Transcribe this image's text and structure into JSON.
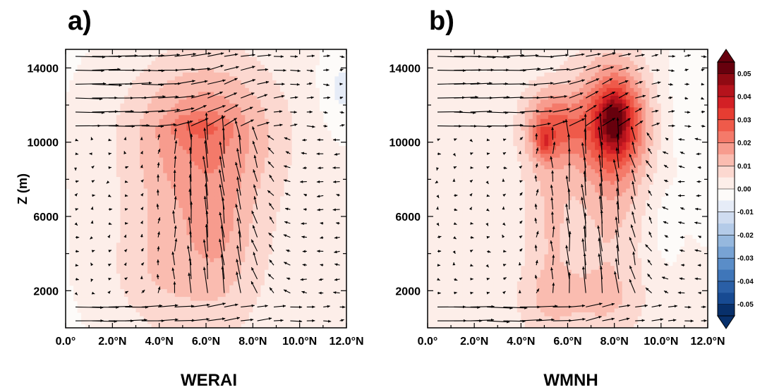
{
  "chart_data": [
    {
      "type": "heatmap",
      "panel_label": "a)",
      "title": "WERAI",
      "xlabel": "",
      "ylabel": "Z (m)",
      "xlim": [
        0,
        12
      ],
      "ylim": [
        0,
        15000
      ],
      "x_ticks": [
        0,
        2,
        4,
        6,
        8,
        10,
        12
      ],
      "x_tick_labels": [
        "0.0°",
        "2.0°N",
        "4.0°N",
        "6.0°N",
        "8.0°N",
        "10.0°N",
        "12.0°N"
      ],
      "y_ticks": [
        2000,
        6000,
        10000,
        14000
      ],
      "y_tick_labels": [
        "2000",
        "6000",
        "10000",
        "14000"
      ],
      "contour_field": [
        {
          "x": 4.3,
          "y": 6500,
          "sx": 2.0,
          "sy": 5200,
          "amp": 0.0065
        },
        {
          "x": 6.6,
          "y": 7000,
          "sx": 1.9,
          "sy": 5600,
          "amp": 0.0085
        },
        {
          "x": 6.0,
          "y": 10800,
          "sx": 2.4,
          "sy": 2300,
          "amp": 0.009
        },
        {
          "x": 6.6,
          "y": 5000,
          "sx": 0.8,
          "sy": 2500,
          "amp": 0.0035
        },
        {
          "x": 5.7,
          "y": 10800,
          "sx": 0.9,
          "sy": 500,
          "amp": 0.006
        },
        {
          "x": 3.5,
          "y": 3000,
          "sx": 1.4,
          "sy": 1800,
          "amp": 0.003
        },
        {
          "x": 11.8,
          "y": 12800,
          "sx": 0.6,
          "sy": 1400,
          "amp": -0.006
        },
        {
          "x": 1.5,
          "y": 6500,
          "sx": 1.8,
          "sy": 8000,
          "amp": -0.0012
        }
      ]
    },
    {
      "type": "heatmap",
      "panel_label": "b)",
      "title": "WMNH",
      "xlabel": "",
      "ylabel": "",
      "xlim": [
        0,
        12
      ],
      "ylim": [
        0,
        15000
      ],
      "x_ticks": [
        0,
        2,
        4,
        6,
        8,
        10,
        12
      ],
      "x_tick_labels": [
        "0.0°",
        "2.0°N",
        "4.0°N",
        "6.0°N",
        "8.0°N",
        "10.0°N",
        "12.0°N"
      ],
      "y_ticks": [
        2000,
        6000,
        10000,
        14000
      ],
      "y_tick_labels": [
        "2000",
        "6000",
        "10000",
        "14000"
      ],
      "contour_field": [
        {
          "x": 5.2,
          "y": 6500,
          "sx": 0.9,
          "sy": 6000,
          "amp": 0.009
        },
        {
          "x": 7.8,
          "y": 6500,
          "sx": 1.1,
          "sy": 6000,
          "amp": 0.009
        },
        {
          "x": 5.4,
          "y": 10800,
          "sx": 0.9,
          "sy": 1300,
          "amp": 0.017
        },
        {
          "x": 8.0,
          "y": 11000,
          "sx": 1.0,
          "sy": 2100,
          "amp": 0.03
        },
        {
          "x": 8.0,
          "y": 11200,
          "sx": 0.4,
          "sy": 900,
          "amp": 0.018
        },
        {
          "x": 5.0,
          "y": 10000,
          "sx": 0.25,
          "sy": 600,
          "amp": 0.012
        },
        {
          "x": 6.3,
          "y": 1500,
          "sx": 2.2,
          "sy": 1200,
          "amp": 0.005
        },
        {
          "x": 10.2,
          "y": 5500,
          "sx": 0.3,
          "sy": 1200,
          "amp": -0.004
        },
        {
          "x": 11.3,
          "y": 12000,
          "sx": 0.8,
          "sy": 2500,
          "amp": -0.003
        },
        {
          "x": 5.0,
          "y": 14200,
          "sx": 0.5,
          "sy": 600,
          "amp": -0.0025
        }
      ]
    }
  ],
  "colorbar": {
    "levels": [
      "0.05",
      "0.04",
      "0.03",
      "0.02",
      "0.01",
      "0.00",
      "-0.01",
      "-0.02",
      "-0.03",
      "-0.04",
      "-0.05"
    ],
    "colors": [
      "#67000d",
      "#900a13",
      "#b5131c",
      "#d32025",
      "#e63d32",
      "#ef5a4a",
      "#f47a6a",
      "#f79c8e",
      "#fabcb0",
      "#fcd8d0",
      "#fdeee9",
      "#fdfbf9",
      "#e6ecf7",
      "#cfdcf0",
      "#b4cbe8",
      "#96b8de",
      "#78a3d4",
      "#5a8dc8",
      "#3f76b9",
      "#2a5fa6",
      "#174a92",
      "#08306b"
    ],
    "upper_triangle_color": "#67000d",
    "lower_triangle_color": "#08306b"
  }
}
